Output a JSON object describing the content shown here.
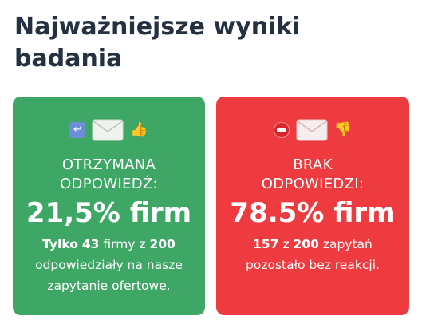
{
  "heading": "Najważniejsze wyniki badania",
  "cards": {
    "received": {
      "label_line1": "OTRZYMANA",
      "label_line2": "ODPOWIEDŹ:",
      "big": "21,5% firm",
      "desc_l1_a": "Tylko",
      "desc_l1_b": "43",
      "desc_l1_c": "firmy z",
      "desc_l1_d": "200",
      "desc_l2": "odpowiedziały na nasze",
      "desc_l3": "zapytanie ofertowe.",
      "icons": [
        "reply-arrow-icon",
        "envelope-icon",
        "thumbs-up-icon"
      ],
      "color": "#3fa766"
    },
    "none": {
      "label_line1": "BRAK",
      "label_line2": "ODPOWIEDZI:",
      "big": "78.5% firm",
      "desc_l1_a": "157",
      "desc_l1_b": "z",
      "desc_l1_c": "200",
      "desc_l1_d": "zapytań",
      "desc_l2": "pozostało bez reakcji.",
      "icons": [
        "no-entry-icon",
        "envelope-icon",
        "thumbs-down-icon"
      ],
      "color": "#ee3b3f"
    }
  }
}
